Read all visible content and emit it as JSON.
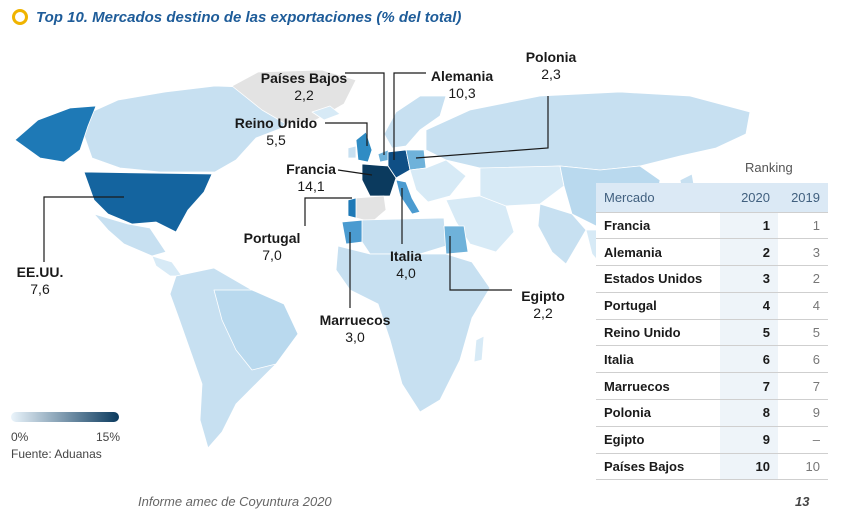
{
  "title": "Top 10. Mercados destino de las exportaciones (% del total)",
  "colors": {
    "accent_ring": "#f0b400",
    "title": "#1e5c99",
    "scale_low": "#eaf4fb",
    "scale_high": "#0b3a5e",
    "no_data": "#e3e3e3"
  },
  "map_labels": [
    {
      "name": "Países Bajos",
      "value": "2,2"
    },
    {
      "name": "Alemania",
      "value": "10,3"
    },
    {
      "name": "Polonia",
      "value": "2,3"
    },
    {
      "name": "Reino Unido",
      "value": "5,5"
    },
    {
      "name": "Francia",
      "value": "14,1"
    },
    {
      "name": "Portugal",
      "value": "7,0"
    },
    {
      "name": "Italia",
      "value": "4,0"
    },
    {
      "name": "EE.UU.",
      "value": "7,6"
    },
    {
      "name": "Egipto",
      "value": "2,2"
    },
    {
      "name": "Marruecos",
      "value": "3,0"
    }
  ],
  "legend": {
    "min": "0%",
    "max": "15%"
  },
  "source": "Fuente: Aduanas",
  "ranking": {
    "title": "Ranking",
    "headers": {
      "market": "Mercado",
      "y2020": "2020",
      "y2019": "2019"
    },
    "rows": [
      {
        "market": "Francia",
        "y2020": "1",
        "y2019": "1"
      },
      {
        "market": "Alemania",
        "y2020": "2",
        "y2019": "3"
      },
      {
        "market": "Estados Unidos",
        "y2020": "3",
        "y2019": "2"
      },
      {
        "market": "Portugal",
        "y2020": "4",
        "y2019": "4"
      },
      {
        "market": "Reino Unido",
        "y2020": "5",
        "y2019": "5"
      },
      {
        "market": "Italia",
        "y2020": "6",
        "y2019": "6"
      },
      {
        "market": "Marruecos",
        "y2020": "7",
        "y2019": "7"
      },
      {
        "market": "Polonia",
        "y2020": "8",
        "y2019": "9"
      },
      {
        "market": "Egipto",
        "y2020": "9",
        "y2019": "–"
      },
      {
        "market": "Países Bajos",
        "y2020": "10",
        "y2019": "10"
      }
    ]
  },
  "footer": "Informe amec de Coyuntura 2020",
  "page_number": "13"
}
